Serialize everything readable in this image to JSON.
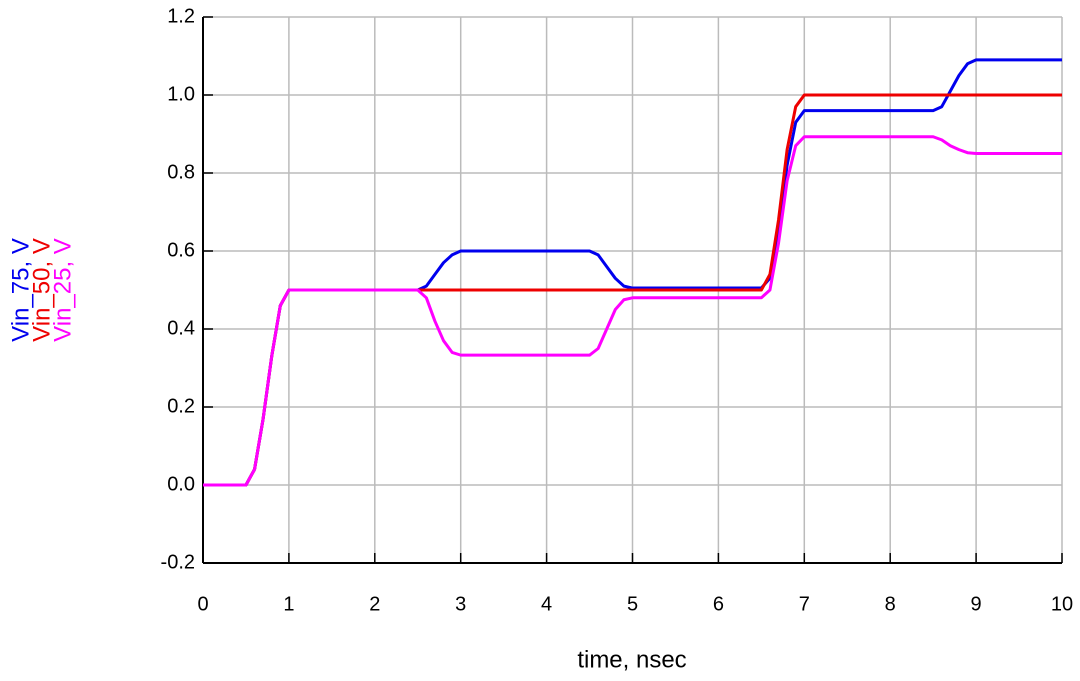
{
  "chart_data": {
    "type": "line",
    "xlabel": "time, nsec",
    "x": [
      0,
      0.5,
      0.6,
      0.7,
      0.8,
      0.9,
      1,
      2.5,
      2.6,
      2.7,
      2.8,
      2.9,
      3,
      4.5,
      4.6,
      4.7,
      4.8,
      4.9,
      5,
      6.5,
      6.6,
      6.7,
      6.8,
      6.9,
      7,
      8.5,
      8.6,
      8.7,
      8.8,
      8.9,
      9,
      10
    ],
    "series": [
      {
        "name": "Vin_75, V",
        "color": "#0000ee",
        "values": [
          0,
          0,
          0.04,
          0.17,
          0.33,
          0.46,
          0.5,
          0.5,
          0.51,
          0.54,
          0.57,
          0.59,
          0.6,
          0.6,
          0.59,
          0.56,
          0.53,
          0.51,
          0.505,
          0.505,
          0.53,
          0.65,
          0.82,
          0.93,
          0.96,
          0.96,
          0.97,
          1.01,
          1.05,
          1.08,
          1.09,
          1.09
        ]
      },
      {
        "name": "Vin_50, V",
        "color": "#ee0000",
        "values": [
          0,
          0,
          0.04,
          0.17,
          0.33,
          0.46,
          0.5,
          0.5,
          0.5,
          0.5,
          0.5,
          0.5,
          0.5,
          0.5,
          0.5,
          0.5,
          0.5,
          0.5,
          0.5,
          0.5,
          0.54,
          0.68,
          0.86,
          0.97,
          1.0,
          1.0,
          1.0,
          1.0,
          1.0,
          1.0,
          1.0,
          1.0
        ]
      },
      {
        "name": "Vin_25, V",
        "color": "#ff00ff",
        "values": [
          0,
          0,
          0.04,
          0.17,
          0.33,
          0.46,
          0.5,
          0.5,
          0.48,
          0.42,
          0.37,
          0.34,
          0.333,
          0.333,
          0.35,
          0.4,
          0.45,
          0.475,
          0.48,
          0.48,
          0.5,
          0.62,
          0.78,
          0.87,
          0.893,
          0.893,
          0.885,
          0.87,
          0.86,
          0.852,
          0.85,
          0.85
        ]
      }
    ],
    "xlim": [
      0,
      10
    ],
    "ylim": [
      -0.2,
      1.2
    ],
    "xticks": [
      0,
      1,
      2,
      3,
      4,
      5,
      6,
      7,
      8,
      9,
      10
    ],
    "yticks": [
      -0.2,
      {
        "value": 0,
        "label": "0.0"
      },
      0.2,
      0.4,
      0.6,
      0.8,
      {
        "value": 1,
        "label": "1.0"
      },
      1.2
    ],
    "grid": true
  }
}
